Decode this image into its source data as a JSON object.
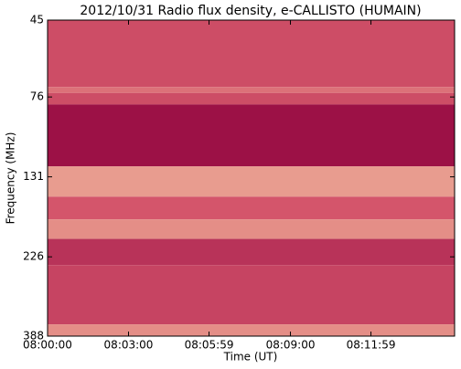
{
  "chart_data": {
    "type": "heatmap",
    "title": "2012/10/31  Radio flux density, e-CALLISTO (HUMAIN)",
    "xlabel": "Time (UT)",
    "ylabel": "Frequency (MHz)",
    "xlim": [
      "08:00:00",
      "08:15:05"
    ],
    "xticks": [
      "08:00:00",
      "08:03:00",
      "08:05:59",
      "08:09:00",
      "08:11:59"
    ],
    "ylim": [
      45,
      388
    ],
    "yscale": "log",
    "yinverted": true,
    "yticks": [
      45,
      76,
      131,
      226,
      388
    ],
    "y_edges": [
      45,
      71,
      74,
      80,
      122,
      150,
      175,
      200,
      239,
      358,
      388
    ],
    "z": [
      0.45,
      0.6,
      0.45,
      0.1,
      0.75,
      0.5,
      0.7,
      0.3,
      0.4,
      0.7
    ],
    "zlim": [
      0,
      1
    ],
    "colormap": [
      "#8e003d",
      "#d4556b",
      "#fbe3b2"
    ]
  }
}
